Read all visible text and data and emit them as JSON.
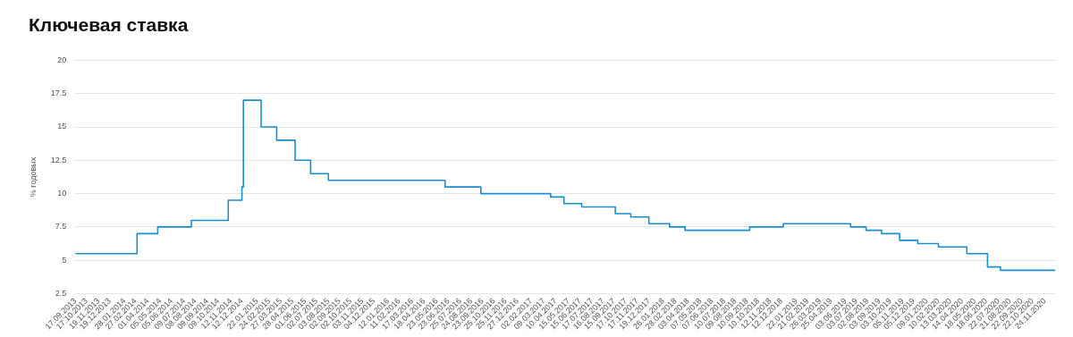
{
  "chart_data": {
    "type": "step",
    "title": "Ключевая ставка",
    "ylabel": "% годовых",
    "color": "#1a8ed0",
    "marker": "none",
    "grid": "y",
    "x": [
      "2013-09-17",
      "2014-03-03",
      "2014-04-28",
      "2014-07-28",
      "2014-11-05",
      "2014-12-12",
      "2014-12-16",
      "2015-02-02",
      "2015-03-16",
      "2015-05-05",
      "2015-06-16",
      "2015-08-03",
      "2016-06-14",
      "2016-09-19",
      "2017-03-27",
      "2017-05-02",
      "2017-06-19",
      "2017-09-18",
      "2017-10-30",
      "2017-12-18",
      "2018-02-12",
      "2018-03-26",
      "2018-09-17",
      "2018-12-17",
      "2019-06-17",
      "2019-07-29",
      "2019-09-09",
      "2019-10-28",
      "2019-12-16",
      "2020-02-10",
      "2020-04-27",
      "2020-06-22",
      "2020-07-27",
      "2020-12-22"
    ],
    "values": [
      5.5,
      7,
      7.5,
      8,
      9.5,
      10.5,
      17,
      15,
      14,
      12.5,
      11.5,
      11,
      10.5,
      10,
      9.75,
      9.25,
      9,
      8.5,
      8.25,
      7.75,
      7.5,
      7.25,
      7.5,
      7.75,
      7.5,
      7.25,
      7,
      6.5,
      6.25,
      6,
      5.5,
      4.5,
      4.25,
      4.25
    ],
    "xlim": [
      "2013-09-17",
      "2020-12-22"
    ],
    "xticks": [
      {
        "value": "2013-09-17",
        "label": "17.09.2013"
      },
      {
        "value": "2013-10-17",
        "label": "17.10.2013"
      },
      {
        "value": "2013-11-19",
        "label": "19.11.2013"
      },
      {
        "value": "2013-12-19",
        "label": "19.12.2013"
      },
      {
        "value": "2014-01-28",
        "label": "28.01.2014"
      },
      {
        "value": "2014-02-27",
        "label": "27.02.2014"
      },
      {
        "value": "2014-04-01",
        "label": "01.04.2014"
      },
      {
        "value": "2014-05-05",
        "label": "05.05.2014"
      },
      {
        "value": "2014-06-05",
        "label": "05.06.2014"
      },
      {
        "value": "2014-07-09",
        "label": "09.07.2014"
      },
      {
        "value": "2014-08-08",
        "label": "08.08.2014"
      },
      {
        "value": "2014-09-09",
        "label": "09.09.2014"
      },
      {
        "value": "2014-10-09",
        "label": "09.10.2014"
      },
      {
        "value": "2014-11-12",
        "label": "12.11.2014"
      },
      {
        "value": "2014-12-12",
        "label": "12.12.2014"
      },
      {
        "value": "2015-01-22",
        "label": "22.01.2015"
      },
      {
        "value": "2015-02-24",
        "label": "24.02.2015"
      },
      {
        "value": "2015-03-27",
        "label": "27.03.2015"
      },
      {
        "value": "2015-04-28",
        "label": "28.04.2015"
      },
      {
        "value": "2015-06-01",
        "label": "01.06.2015"
      },
      {
        "value": "2015-07-02",
        "label": "02.07.2015"
      },
      {
        "value": "2015-08-03",
        "label": "03.08.2015"
      },
      {
        "value": "2015-09-02",
        "label": "02.09.2015"
      },
      {
        "value": "2015-10-02",
        "label": "02.10.2015"
      },
      {
        "value": "2015-11-03",
        "label": "03.11.2015"
      },
      {
        "value": "2015-12-04",
        "label": "04.12.2015"
      },
      {
        "value": "2016-01-12",
        "label": "12.01.2016"
      },
      {
        "value": "2016-02-11",
        "label": "11.02.2016"
      },
      {
        "value": "2016-03-17",
        "label": "17.03.2016"
      },
      {
        "value": "2016-04-18",
        "label": "18.04.2016"
      },
      {
        "value": "2016-05-23",
        "label": "23.05.2016"
      },
      {
        "value": "2016-06-23",
        "label": "23.06.2016"
      },
      {
        "value": "2016-07-25",
        "label": "25.07.2016"
      },
      {
        "value": "2016-08-24",
        "label": "24.08.2016"
      },
      {
        "value": "2016-09-23",
        "label": "23.09.2016"
      },
      {
        "value": "2016-10-25",
        "label": "25.10.2016"
      },
      {
        "value": "2016-11-25",
        "label": "25.11.2016"
      },
      {
        "value": "2016-12-27",
        "label": "27.12.2016"
      },
      {
        "value": "2017-02-02",
        "label": "02.02.2017"
      },
      {
        "value": "2017-03-09",
        "label": "09.03.2017"
      },
      {
        "value": "2017-04-10",
        "label": "10.04.2017"
      },
      {
        "value": "2017-05-15",
        "label": "15.05.2017"
      },
      {
        "value": "2017-06-15",
        "label": "15.06.2017"
      },
      {
        "value": "2017-07-17",
        "label": "17.07.2017"
      },
      {
        "value": "2017-08-16",
        "label": "16.08.2017"
      },
      {
        "value": "2017-09-15",
        "label": "15.09.2017"
      },
      {
        "value": "2017-10-17",
        "label": "17.10.2017"
      },
      {
        "value": "2017-11-17",
        "label": "17.11.2017"
      },
      {
        "value": "2017-12-19",
        "label": "19.12.2017"
      },
      {
        "value": "2018-01-26",
        "label": "26.01.2018"
      },
      {
        "value": "2018-02-28",
        "label": "28.02.2018"
      },
      {
        "value": "2018-04-03",
        "label": "03.04.2018"
      },
      {
        "value": "2018-05-07",
        "label": "07.05.2018"
      },
      {
        "value": "2018-06-07",
        "label": "07.06.2018"
      },
      {
        "value": "2018-07-10",
        "label": "10.07.2018"
      },
      {
        "value": "2018-08-09",
        "label": "09.08.2018"
      },
      {
        "value": "2018-09-10",
        "label": "10.09.2018"
      },
      {
        "value": "2018-10-10",
        "label": "10.10.2018"
      },
      {
        "value": "2018-11-12",
        "label": "12.11.2018"
      },
      {
        "value": "2018-12-12",
        "label": "12.12.2018"
      },
      {
        "value": "2019-01-22",
        "label": "22.01.2019"
      },
      {
        "value": "2019-02-21",
        "label": "21.02.2019"
      },
      {
        "value": "2019-03-26",
        "label": "26.03.2019"
      },
      {
        "value": "2019-04-25",
        "label": "25.04.2019"
      },
      {
        "value": "2019-06-03",
        "label": "03.06.2019"
      },
      {
        "value": "2019-07-03",
        "label": "03.07.2019"
      },
      {
        "value": "2019-08-02",
        "label": "02.08.2019"
      },
      {
        "value": "2019-09-03",
        "label": "03.09.2019"
      },
      {
        "value": "2019-10-03",
        "label": "03.10.2019"
      },
      {
        "value": "2019-11-05",
        "label": "05.11.2019"
      },
      {
        "value": "2019-12-05",
        "label": "05.12.2019"
      },
      {
        "value": "2020-01-09",
        "label": "09.01.2020"
      },
      {
        "value": "2020-02-10",
        "label": "10.02.2020"
      },
      {
        "value": "2020-03-13",
        "label": "13.03.2020"
      },
      {
        "value": "2020-04-14",
        "label": "14.04.2020"
      },
      {
        "value": "2020-05-18",
        "label": "18.05.2020"
      },
      {
        "value": "2020-06-18",
        "label": "18.06.2020"
      },
      {
        "value": "2020-07-22",
        "label": "22.07.2020"
      },
      {
        "value": "2020-08-21",
        "label": "21.08.2020"
      },
      {
        "value": "2020-09-22",
        "label": "22.09.2020"
      },
      {
        "value": "2020-10-22",
        "label": "22.10.2020"
      },
      {
        "value": "2020-11-24",
        "label": "24.11.2020"
      }
    ],
    "ylim": [
      2.5,
      20
    ],
    "yticks": [
      2.5,
      5,
      7.5,
      10,
      12.5,
      15,
      17.5,
      20
    ]
  }
}
